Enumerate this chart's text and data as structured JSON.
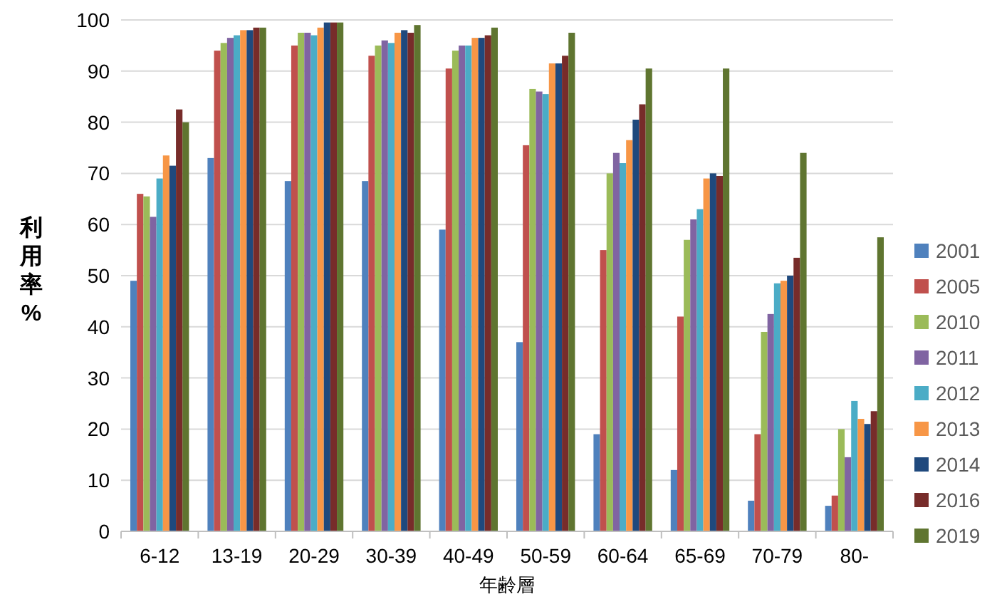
{
  "chart_data": {
    "type": "bar",
    "xlabel": "年齢層",
    "ylabel": "利用率%",
    "categories": [
      "6-12",
      "13-19",
      "20-29",
      "30-39",
      "40-49",
      "50-59",
      "60-64",
      "65-69",
      "70-79",
      "80-"
    ],
    "series": [
      {
        "name": "2001",
        "color": "#4f81bd",
        "values": [
          49,
          73,
          68.5,
          68.5,
          59,
          37,
          19,
          12,
          6,
          5
        ]
      },
      {
        "name": "2005",
        "color": "#c0504d",
        "values": [
          66,
          94,
          95,
          93,
          90.5,
          75.5,
          55,
          42,
          19,
          7
        ]
      },
      {
        "name": "2010",
        "color": "#9bbb59",
        "values": [
          65.5,
          95.5,
          97.5,
          95,
          94,
          86.5,
          70,
          57,
          39,
          20
        ]
      },
      {
        "name": "2011",
        "color": "#8064a2",
        "values": [
          61.5,
          96.5,
          97.5,
          96,
          95,
          86,
          74,
          61,
          42.5,
          14.5
        ]
      },
      {
        "name": "2012",
        "color": "#4bacc6",
        "values": [
          69,
          97,
          97,
          95.5,
          95,
          85.5,
          72,
          63,
          48.5,
          25.5
        ]
      },
      {
        "name": "2013",
        "color": "#f79646",
        "values": [
          73.5,
          98,
          98.5,
          97.5,
          96.5,
          91.5,
          76.5,
          69,
          49,
          22
        ]
      },
      {
        "name": "2014",
        "color": "#1f497d",
        "values": [
          71.5,
          98,
          99.5,
          98,
          96.5,
          91.5,
          80.5,
          70,
          50,
          21
        ]
      },
      {
        "name": "2016",
        "color": "#772c2a",
        "values": [
          82.5,
          98.5,
          99.5,
          97.5,
          97,
          93,
          83.5,
          69.5,
          53.5,
          23.5
        ]
      },
      {
        "name": "2019",
        "color": "#5f7530",
        "values": [
          80,
          98.5,
          99.5,
          99,
          98.5,
          97.5,
          90.5,
          90.5,
          74,
          57.5
        ]
      }
    ],
    "ylim": [
      0,
      100
    ],
    "yticks": [
      0,
      10,
      20,
      30,
      40,
      50,
      60,
      70,
      80,
      90,
      100
    ],
    "grid": "y",
    "legend": "right"
  }
}
